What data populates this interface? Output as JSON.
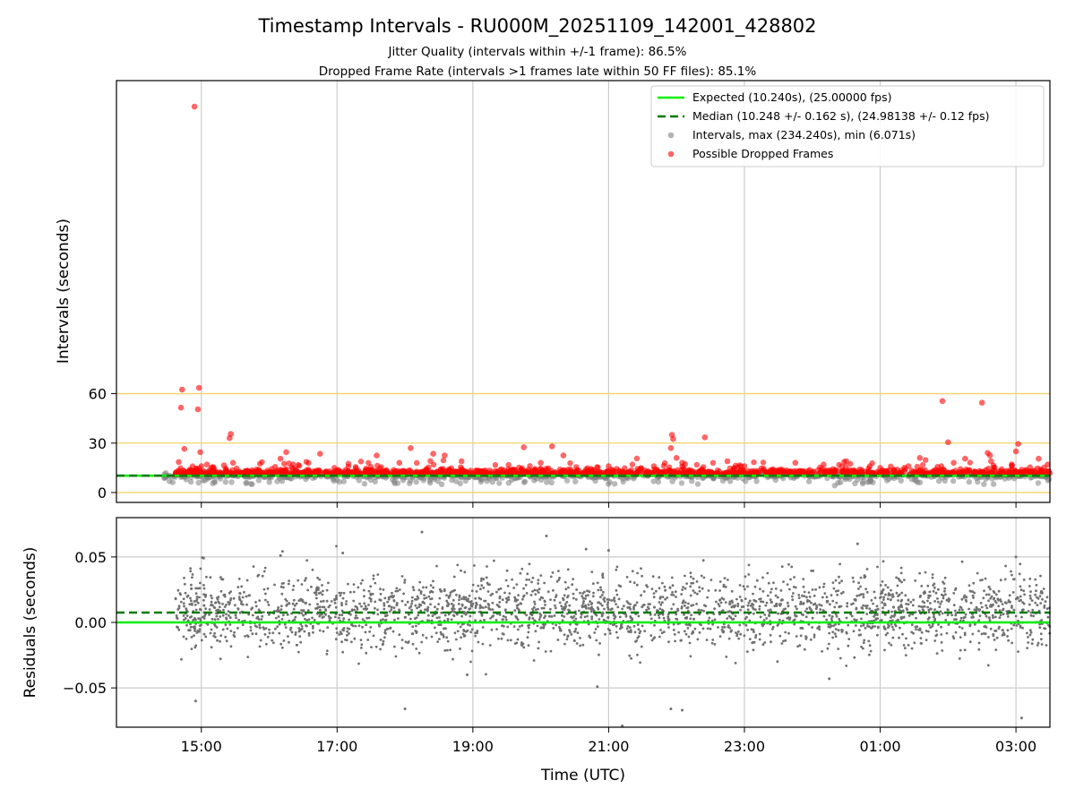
{
  "title": "Timestamp Intervals - RU000M_20251109_142001_428802",
  "subtitle_jitter": "Jitter Quality (intervals within +/-1 frame): 86.5%",
  "subtitle_dropped": "Dropped Frame Rate (intervals >1 frames late within 50 FF files): 85.1%",
  "colors": {
    "expected": "#00ee00",
    "median": "#007a00",
    "intervals": "#808080",
    "dropped": "#ff0000",
    "hlines": "#f5d46a",
    "grid": "#cccccc"
  },
  "chart_data": [
    {
      "type": "scatter",
      "panel": "intervals",
      "xlabel": "",
      "ylabel": "Intervals (seconds)",
      "x_range": [
        "2025-11-09T13:45:00Z",
        "2025-11-10T03:30:00Z"
      ],
      "ylim": [
        -6,
        250
      ],
      "y_ticks": [
        0,
        30,
        60
      ],
      "x_ticks": [
        "15:00",
        "17:00",
        "19:00",
        "21:00",
        "23:00",
        "01:00",
        "03:00"
      ],
      "grid": "vertical",
      "horizontal_reference_lines": [
        0,
        30,
        60
      ],
      "expected_interval": 10.24,
      "median_interval": 10.248,
      "legend_position": "top-right",
      "legend": [
        "Expected (10.240s), (25.00000 fps)",
        "Median (10.248 +/- 0.162 s), (24.98138 +/- 0.12 fps)",
        "Intervals, max (234.240s), min (6.071s)",
        "Possible Dropped Frames"
      ],
      "series": [
        {
          "name": "Possible Dropped Frames",
          "points": [
            [
              "2025-11-09T14:40:00Z",
              18.5
            ],
            [
              "2025-11-09T14:42:00Z",
              51.5
            ],
            [
              "2025-11-09T14:43:00Z",
              62.5
            ],
            [
              "2025-11-09T14:45:00Z",
              26.5
            ],
            [
              "2025-11-09T14:50:00Z",
              14.0
            ],
            [
              "2025-11-09T14:53:00Z",
              12.5
            ],
            [
              "2025-11-09T14:54:00Z",
              234.2
            ],
            [
              "2025-11-09T14:57:00Z",
              50.5
            ],
            [
              "2025-11-09T14:58:00Z",
              63.5
            ],
            [
              "2025-11-09T14:59:00Z",
              24.5
            ],
            [
              "2025-11-09T15:00:00Z",
              16.0
            ],
            [
              "2025-11-09T15:02:00Z",
              13.0
            ],
            [
              "2025-11-09T15:05:00Z",
              17.0
            ],
            [
              "2025-11-09T15:10:00Z",
              15.5
            ],
            [
              "2025-11-09T15:20:00Z",
              16.5
            ],
            [
              "2025-11-09T15:25:00Z",
              33.0
            ],
            [
              "2025-11-09T15:26:00Z",
              35.5
            ],
            [
              "2025-11-09T15:28:00Z",
              18.0
            ],
            [
              "2025-11-09T15:45:00Z",
              13.5
            ],
            [
              "2025-11-09T16:00:00Z",
              12.0
            ],
            [
              "2025-11-09T16:10:00Z",
              20.5
            ],
            [
              "2025-11-09T16:15:00Z",
              24.5
            ],
            [
              "2025-11-09T16:45:00Z",
              23.5
            ],
            [
              "2025-11-09T17:10:00Z",
              17.5
            ],
            [
              "2025-11-09T17:30:00Z",
              15.5
            ],
            [
              "2025-11-09T17:35:00Z",
              22.5
            ],
            [
              "2025-11-09T17:55:00Z",
              18.0
            ],
            [
              "2025-11-09T18:05:00Z",
              27.0
            ],
            [
              "2025-11-09T18:25:00Z",
              23.5
            ],
            [
              "2025-11-09T18:35:00Z",
              22.5
            ],
            [
              "2025-11-09T18:50:00Z",
              19.0
            ],
            [
              "2025-11-09T19:45:00Z",
              27.5
            ],
            [
              "2025-11-09T20:00:00Z",
              18.0
            ],
            [
              "2025-11-09T20:10:00Z",
              28.0
            ],
            [
              "2025-11-09T20:20:00Z",
              22.5
            ],
            [
              "2025-11-09T20:40:00Z",
              14.0
            ],
            [
              "2025-11-09T21:00:00Z",
              16.0
            ],
            [
              "2025-11-09T21:20:00Z",
              13.5
            ],
            [
              "2025-11-09T21:40:00Z",
              16.0
            ],
            [
              "2025-11-09T21:55:00Z",
              27.0
            ],
            [
              "2025-11-09T21:56:00Z",
              35.0
            ],
            [
              "2025-11-09T21:57:00Z",
              32.5
            ],
            [
              "2025-11-09T22:00:00Z",
              21.0
            ],
            [
              "2025-11-09T22:05:00Z",
              18.0
            ],
            [
              "2025-11-09T22:25:00Z",
              33.5
            ],
            [
              "2025-11-09T22:45:00Z",
              19.0
            ],
            [
              "2025-11-09T23:00:00Z",
              16.0
            ],
            [
              "2025-11-09T23:25:00Z",
              13.0
            ],
            [
              "2025-11-09T23:45:00Z",
              18.0
            ],
            [
              "2025-11-10T00:10:00Z",
              17.0
            ],
            [
              "2025-11-10T00:30:00Z",
              19.0
            ],
            [
              "2025-11-10T01:00:00Z",
              15.0
            ],
            [
              "2025-11-10T01:25:00Z",
              16.0
            ],
            [
              "2025-11-10T01:35:00Z",
              21.0
            ],
            [
              "2025-11-10T01:55:00Z",
              55.5
            ],
            [
              "2025-11-10T02:00:00Z",
              30.5
            ],
            [
              "2025-11-10T02:05:00Z",
              18.0
            ],
            [
              "2025-11-10T02:15:00Z",
              20.5
            ],
            [
              "2025-11-10T02:30:00Z",
              54.5
            ],
            [
              "2025-11-10T02:35:00Z",
              24.0
            ],
            [
              "2025-11-10T02:37:00Z",
              22.5
            ],
            [
              "2025-11-10T02:38:00Z",
              19.0
            ],
            [
              "2025-11-10T03:00:00Z",
              25.0
            ],
            [
              "2025-11-10T03:02:00Z",
              29.5
            ],
            [
              "2025-11-10T03:20:00Z",
              20.5
            ],
            [
              "2025-11-10T03:28:00Z",
              17.0
            ]
          ]
        }
      ]
    },
    {
      "type": "scatter",
      "panel": "residuals",
      "xlabel": "Time (UTC)",
      "ylabel": "Residuals (seconds)",
      "x_range": [
        "2025-11-09T13:45:00Z",
        "2025-11-10T03:30:00Z"
      ],
      "ylim": [
        -0.08,
        0.08
      ],
      "y_ticks": [
        0.05,
        0.0,
        -0.05
      ],
      "y_tick_labels": [
        "0.05",
        "0.00",
        "−0.05"
      ],
      "x_ticks": [
        "15:00",
        "17:00",
        "19:00",
        "21:00",
        "23:00",
        "01:00",
        "03:00"
      ],
      "grid": "both",
      "expected_residual": 0.0,
      "median_residual": 0.0075,
      "series": [
        {
          "name": "Residuals",
          "points": [
            [
              "2025-11-09T14:55:00Z",
              -0.06
            ],
            [
              "2025-11-09T15:02:00Z",
              0.049
            ],
            [
              "2025-11-09T16:10:00Z",
              0.051
            ],
            [
              "2025-11-09T17:05:00Z",
              0.053
            ],
            [
              "2025-11-09T18:15:00Z",
              0.069
            ],
            [
              "2025-11-09T18:00:00Z",
              -0.066
            ],
            [
              "2025-11-09T18:55:00Z",
              -0.04
            ],
            [
              "2025-11-09T20:05:00Z",
              0.066
            ],
            [
              "2025-11-09T20:40:00Z",
              0.056
            ],
            [
              "2025-11-09T21:00:00Z",
              0.055
            ],
            [
              "2025-11-09T20:50:00Z",
              -0.049
            ],
            [
              "2025-11-09T21:12:00Z",
              -0.079
            ],
            [
              "2025-11-09T21:55:00Z",
              -0.066
            ],
            [
              "2025-11-09T22:05:00Z",
              -0.067
            ],
            [
              "2025-11-10T00:40:00Z",
              0.06
            ],
            [
              "2025-11-10T03:05:00Z",
              -0.073
            ],
            [
              "2025-11-10T03:00:00Z",
              0.05
            ],
            [
              "2025-11-10T00:15:00Z",
              -0.043
            ]
          ]
        }
      ]
    }
  ]
}
